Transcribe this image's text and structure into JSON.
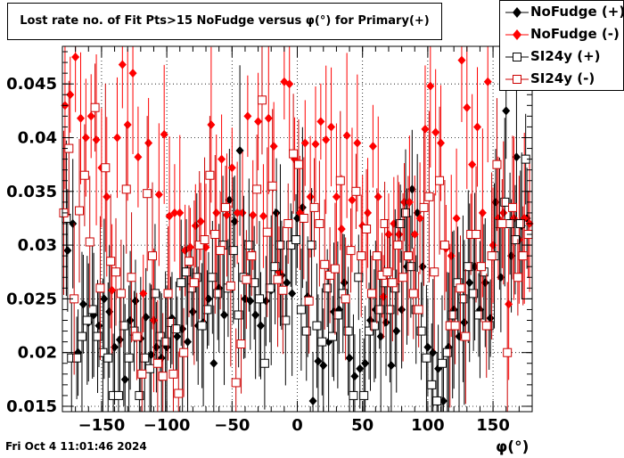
{
  "title": "Lost rate no. of Fit Pts>15 NoFudge versus φ(°) for Primary(+)",
  "footer": "Fri Oct  4 11:01:46 2024",
  "xlabel": "φ(°)",
  "legend": [
    {
      "label": "NoFudge (+)",
      "color": "#000000",
      "marker": "diamond-filled"
    },
    {
      "label": "NoFudge (-)",
      "color": "#ff0000",
      "marker": "diamond-filled"
    },
    {
      "label": "SI24y (+)",
      "color": "#000000",
      "marker": "square-open"
    },
    {
      "label": "SI24y (-)",
      "color": "#cc0000",
      "marker": "square-open"
    }
  ],
  "chart_data": {
    "type": "scatter",
    "xlim": [
      -180,
      180
    ],
    "ylim": [
      0.0145,
      0.0485
    ],
    "xticks": [
      -150,
      -100,
      -50,
      0,
      50,
      100,
      150
    ],
    "yticks": [
      0.015,
      0.02,
      0.025,
      0.03,
      0.035,
      0.04,
      0.045
    ],
    "ytick_labels": [
      "0.015",
      "0.02",
      "0.025",
      "0.03",
      "0.035",
      "0.04",
      "0.045"
    ],
    "xtick_labels": [
      "−150",
      "−100",
      "−50",
      "0",
      "50",
      "100",
      "150"
    ],
    "grid": true,
    "legend_position": "top-right",
    "series": [
      {
        "name": "NoFudge (+)",
        "color": "#000000",
        "marker": "diamond-filled",
        "x": [
          -176,
          -172,
          -168,
          -164,
          -160,
          -156,
          -152,
          -148,
          -144,
          -140,
          -136,
          -132,
          -128,
          -124,
          -120,
          -116,
          -112,
          -108,
          -104,
          -100,
          -96,
          -92,
          -88,
          -84,
          -80,
          -76,
          -72,
          -68,
          -64,
          -60,
          -56,
          -52,
          -48,
          -44,
          -40,
          -36,
          -32,
          -28,
          -24,
          -20,
          -16,
          -12,
          -8,
          -4,
          0,
          4,
          8,
          12,
          16,
          20,
          24,
          28,
          32,
          36,
          40,
          44,
          48,
          52,
          56,
          60,
          64,
          68,
          72,
          76,
          80,
          84,
          88,
          92,
          96,
          100,
          104,
          108,
          112,
          116,
          120,
          124,
          128,
          132,
          136,
          140,
          144,
          148,
          152,
          156,
          160,
          164,
          168,
          172,
          176
        ],
        "y": [
          0.0295,
          0.032,
          0.02,
          0.0245,
          0.0228,
          0.0235,
          0.0225,
          0.025,
          0.0238,
          0.0205,
          0.0212,
          0.0175,
          0.023,
          0.0248,
          0.0213,
          0.0233,
          0.0198,
          0.0205,
          0.0195,
          0.0205,
          0.0232,
          0.0215,
          0.0222,
          0.021,
          0.0238,
          0.0225,
          0.0228,
          0.025,
          0.019,
          0.026,
          0.0235,
          0.0342,
          0.0322,
          0.0388,
          0.025,
          0.0248,
          0.0235,
          0.0225,
          0.0248,
          0.0258,
          0.033,
          0.0272,
          0.0265,
          0.0255,
          0.0325,
          0.0335,
          0.0252,
          0.0155,
          0.0192,
          0.0188,
          0.021,
          0.0238,
          0.024,
          0.0265,
          0.0195,
          0.0178,
          0.0185,
          0.019,
          0.023,
          0.024,
          0.0215,
          0.0228,
          0.0188,
          0.022,
          0.024,
          0.028,
          0.0352,
          0.033,
          0.028,
          0.0205,
          0.02,
          0.0185,
          0.0155,
          0.0205,
          0.024,
          0.0215,
          0.0228,
          0.0265,
          0.028,
          0.024,
          0.0265,
          0.0232,
          0.034,
          0.027,
          0.0425,
          0.029,
          0.0382,
          0.0318,
          0.0325
        ]
      },
      {
        "name": "NoFudge (-)",
        "color": "#ff0000",
        "marker": "diamond-filled",
        "x": [
          -178,
          -174,
          -170,
          -166,
          -162,
          -158,
          -154,
          -150,
          -146,
          -142,
          -138,
          -134,
          -130,
          -126,
          -122,
          -118,
          -114,
          -110,
          -106,
          -102,
          -98,
          -94,
          -90,
          -86,
          -82,
          -78,
          -74,
          -70,
          -66,
          -62,
          -58,
          -54,
          -50,
          -46,
          -42,
          -38,
          -34,
          -30,
          -26,
          -22,
          -18,
          -14,
          -10,
          -6,
          -2,
          2,
          6,
          10,
          14,
          18,
          22,
          26,
          30,
          34,
          38,
          42,
          46,
          50,
          54,
          58,
          62,
          66,
          70,
          74,
          78,
          82,
          86,
          90,
          94,
          98,
          102,
          106,
          110,
          114,
          118,
          122,
          126,
          130,
          134,
          138,
          142,
          146,
          150,
          154,
          158,
          162,
          166,
          170,
          174,
          178
        ],
        "y": [
          0.043,
          0.044,
          0.0475,
          0.0418,
          0.04,
          0.042,
          0.0398,
          0.0372,
          0.0345,
          0.0258,
          0.04,
          0.0468,
          0.0412,
          0.046,
          0.0382,
          0.0255,
          0.0395,
          0.023,
          0.0347,
          0.0403,
          0.0327,
          0.033,
          0.033,
          0.0295,
          0.0298,
          0.0318,
          0.0322,
          0.0298,
          0.0412,
          0.033,
          0.038,
          0.0328,
          0.0372,
          0.033,
          0.033,
          0.042,
          0.0328,
          0.0415,
          0.0327,
          0.0418,
          0.0392,
          0.0275,
          0.0452,
          0.045,
          0.038,
          0.033,
          0.0395,
          0.0345,
          0.0394,
          0.0415,
          0.0398,
          0.041,
          0.0345,
          0.0315,
          0.0402,
          0.0342,
          0.0395,
          0.0318,
          0.033,
          0.0392,
          0.0345,
          0.0252,
          0.031,
          0.032,
          0.031,
          0.034,
          0.034,
          0.031,
          0.0325,
          0.0408,
          0.0448,
          0.0405,
          0.0395,
          0.0297,
          0.029,
          0.0325,
          0.0472,
          0.0428,
          0.0375,
          0.041,
          0.033,
          0.0452,
          0.03,
          0.0325,
          0.033,
          0.0245,
          0.0325,
          0.0305,
          0.0325,
          0.032
        ]
      },
      {
        "name": "SI24y (+)",
        "color": "#000000",
        "marker": "square-open",
        "x": [
          -177,
          -173,
          -169,
          -165,
          -161,
          -157,
          -153,
          -149,
          -145,
          -141,
          -137,
          -133,
          -129,
          -125,
          -121,
          -117,
          -113,
          -109,
          -105,
          -101,
          -97,
          -93,
          -89,
          -85,
          -81,
          -77,
          -73,
          -69,
          -65,
          -61,
          -57,
          -53,
          -49,
          -45,
          -41,
          -37,
          -33,
          -29,
          -25,
          -21,
          -17,
          -13,
          -9,
          -5,
          -1,
          3,
          7,
          11,
          15,
          19,
          23,
          27,
          31,
          35,
          39,
          43,
          47,
          51,
          55,
          59,
          63,
          67,
          71,
          75,
          79,
          83,
          87,
          91,
          95,
          99,
          103,
          107,
          111,
          115,
          119,
          123,
          127,
          131,
          135,
          139,
          143,
          147,
          151,
          155,
          159,
          163,
          167,
          171,
          175
        ],
        "y": [
          0.0325,
          0.0195,
          0.0195,
          0.0215,
          0.023,
          0.024,
          0.0215,
          0.02,
          0.0195,
          0.016,
          0.016,
          0.0225,
          0.0195,
          0.022,
          0.016,
          0.0195,
          0.0185,
          0.0255,
          0.0215,
          0.021,
          0.0228,
          0.0222,
          0.0265,
          0.0275,
          0.026,
          0.027,
          0.0225,
          0.024,
          0.027,
          0.0255,
          0.03,
          0.026,
          0.0295,
          0.0235,
          0.027,
          0.03,
          0.0265,
          0.025,
          0.019,
          0.026,
          0.028,
          0.03,
          0.023,
          0.03,
          0.0305,
          0.024,
          0.022,
          0.03,
          0.0225,
          0.021,
          0.026,
          0.0215,
          0.0235,
          0.0255,
          0.022,
          0.016,
          0.027,
          0.016,
          0.022,
          0.0225,
          0.024,
          0.0265,
          0.024,
          0.026,
          0.032,
          0.033,
          0.028,
          0.024,
          0.022,
          0.0195,
          0.017,
          0.0155,
          0.019,
          0.02,
          0.0235,
          0.0265,
          0.025,
          0.028,
          0.0255,
          0.0235,
          0.0275,
          0.0225,
          0.029,
          0.032,
          0.034,
          0.032,
          0.0305,
          0.032,
          0.038
        ]
      },
      {
        "name": "SI24y (-)",
        "color": "#cc0000",
        "marker": "square-open",
        "x": [
          -179,
          -175,
          -171,
          -167,
          -163,
          -159,
          -155,
          -151,
          -147,
          -143,
          -139,
          -135,
          -131,
          -127,
          -123,
          -119,
          -115,
          -111,
          -107,
          -103,
          -99,
          -95,
          -91,
          -87,
          -83,
          -79,
          -75,
          -71,
          -67,
          -63,
          -59,
          -55,
          -51,
          -47,
          -43,
          -39,
          -35,
          -31,
          -27,
          -23,
          -19,
          -15,
          -11,
          -7,
          -3,
          1,
          5,
          9,
          13,
          17,
          21,
          25,
          29,
          33,
          37,
          41,
          45,
          49,
          53,
          57,
          61,
          65,
          67,
          69,
          73,
          77,
          81,
          85,
          89,
          93,
          97,
          101,
          105,
          109,
          113,
          117,
          121,
          125,
          129,
          133,
          137,
          141,
          145,
          149,
          153,
          157,
          161,
          165,
          169,
          173,
          177
        ],
        "y": [
          0.033,
          0.039,
          0.025,
          0.0332,
          0.0365,
          0.0303,
          0.0428,
          0.026,
          0.0372,
          0.0285,
          0.0275,
          0.0255,
          0.0352,
          0.027,
          0.0215,
          0.018,
          0.0348,
          0.029,
          0.019,
          0.0178,
          0.0255,
          0.018,
          0.0162,
          0.02,
          0.0285,
          0.0265,
          0.03,
          0.0305,
          0.0365,
          0.031,
          0.0295,
          0.0335,
          0.0262,
          0.0172,
          0.0208,
          0.0268,
          0.029,
          0.0352,
          0.0435,
          0.0312,
          0.0355,
          0.0268,
          0.0258,
          0.032,
          0.0385,
          0.0375,
          0.0325,
          0.0248,
          0.0335,
          0.032,
          0.0282,
          0.0272,
          0.0278,
          0.036,
          0.025,
          0.0295,
          0.035,
          0.029,
          0.0315,
          0.0255,
          0.029,
          0.0272,
          0.032,
          0.0275,
          0.0265,
          0.03,
          0.027,
          0.029,
          0.0255,
          0.024,
          0.0335,
          0.0345,
          0.0275,
          0.036,
          0.03,
          0.0225,
          0.0225,
          0.026,
          0.0215,
          0.031,
          0.031,
          0.028,
          0.0225,
          0.029,
          0.0375,
          0.032,
          0.02,
          0.0335,
          0.027,
          0.029,
          0.031
        ]
      }
    ]
  }
}
